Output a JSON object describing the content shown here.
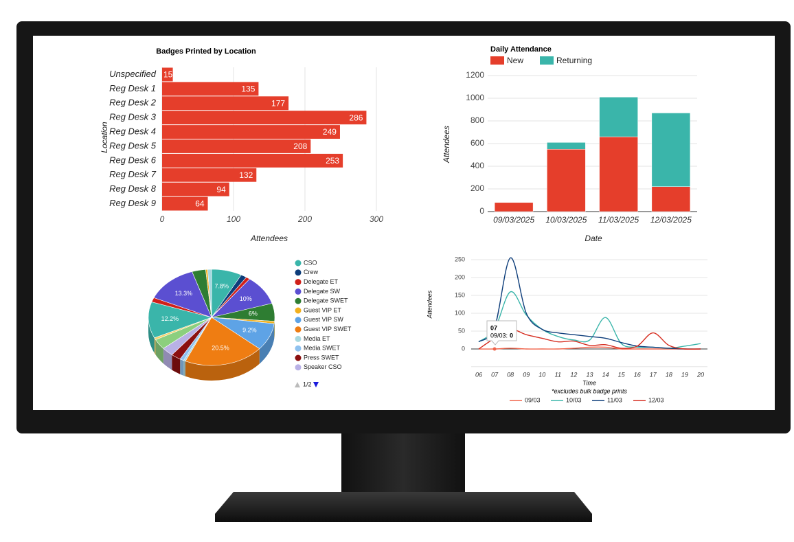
{
  "chart_data": [
    {
      "type": "hbar",
      "title": "Badges Printed by Location",
      "x_label": "Attendees",
      "y_label": "Location",
      "categories": [
        "Unspecified",
        "Reg Desk 1",
        "Reg Desk 2",
        "Reg Desk 3",
        "Reg Desk 4",
        "Reg Desk 5",
        "Reg Desk 6",
        "Reg Desk 7",
        "Reg Desk 8",
        "Reg Desk 9"
      ],
      "values": [
        15,
        135,
        177,
        286,
        249,
        208,
        253,
        132,
        94,
        64
      ],
      "color": "#e53e2b",
      "xlim": [
        0,
        300
      ],
      "xticks": [
        0,
        100,
        200,
        300
      ],
      "grid": true
    },
    {
      "type": "stacked-bar",
      "title": "Daily Attendance",
      "x_label": "Date",
      "y_label": "Attendees",
      "categories": [
        "09/03/2025",
        "10/03/2025",
        "11/03/2025",
        "12/03/2025"
      ],
      "series": [
        {
          "name": "New",
          "color": "#e53e2b",
          "values": [
            80,
            550,
            660,
            220
          ]
        },
        {
          "name": "Returning",
          "color": "#3ab5aa",
          "values": [
            0,
            60,
            350,
            650
          ]
        }
      ],
      "ylim": [
        0,
        1200
      ],
      "yticks": [
        0,
        200,
        400,
        600,
        800,
        1000,
        1200
      ],
      "grid": true,
      "legend": "top-left"
    },
    {
      "type": "pie3d",
      "categories": [
        "CSO",
        "Crew",
        "Delegate ET",
        "Delegate SW",
        "Delegate SWET",
        "Guest VIP ET",
        "Guest VIP SW",
        "Guest VIP SWET",
        "Media ET",
        "Media SWET",
        "Press SWET",
        "Speaker CSO",
        null,
        null,
        null,
        null,
        null,
        null,
        null,
        null
      ],
      "values": [
        7.8,
        1.5,
        1,
        10,
        6,
        0.8,
        9.2,
        20.5,
        0.5,
        1,
        2.5,
        3,
        3.5,
        0.7,
        12.2,
        1.5,
        13.3,
        3.5,
        0.5,
        1
      ],
      "value_labels": [
        "7.8%",
        null,
        null,
        "10%",
        "6%",
        null,
        "9.2%",
        "20.5%",
        null,
        null,
        null,
        null,
        null,
        null,
        "12.2%",
        null,
        "13.3%",
        null,
        null,
        null
      ],
      "colors": [
        "#3ab5aa",
        "#0d3d7a",
        "#d0201a",
        "#5b4fd1",
        "#2e7d32",
        "#f2b01e",
        "#5ea3e6",
        "#ef7d12",
        "#a8d8e0",
        "#8ec1ef",
        "#8b1010",
        "#b9b1e6",
        "#8ccf7e",
        "#f5d36b",
        "#3ab5aa",
        "#d0201a",
        "#5b4fd1",
        "#2e7d32",
        "#f2b01e",
        "#a8d8e0"
      ],
      "legend": "right",
      "legend_page": "1/2"
    },
    {
      "type": "line",
      "x_label": "Time",
      "y_label": "Attendees",
      "note": "*excludes bulk badge prints",
      "categories": [
        "06",
        "07",
        "08",
        "09",
        "10",
        "11",
        "12",
        "13",
        "14",
        "15",
        "16",
        "17",
        "18",
        "19",
        "20"
      ],
      "series": [
        {
          "name": "09/03",
          "color": "#f0634a",
          "values": [
            0,
            0,
            2,
            0,
            0,
            0,
            2,
            5,
            5,
            0,
            0,
            0,
            0,
            0,
            0
          ]
        },
        {
          "name": "10/03",
          "color": "#3ab5aa",
          "values": [
            20,
            55,
            160,
            95,
            55,
            35,
            25,
            25,
            88,
            15,
            5,
            5,
            2,
            8,
            15
          ]
        },
        {
          "name": "11/03",
          "color": "#0d3d7a",
          "values": [
            20,
            60,
            255,
            100,
            55,
            45,
            40,
            35,
            30,
            18,
            8,
            5,
            2,
            0,
            0
          ]
        },
        {
          "name": "12/03",
          "color": "#d62d20",
          "values": [
            0,
            30,
            55,
            40,
            30,
            20,
            22,
            10,
            12,
            2,
            8,
            45,
            10,
            0,
            0
          ]
        }
      ],
      "ylim": [
        -40,
        270
      ],
      "yticks": [
        0,
        50,
        100,
        150,
        200,
        250
      ],
      "grid": true,
      "legend": "bottom",
      "tooltip": {
        "x": "07",
        "label": "09/03:",
        "value": 0
      }
    }
  ]
}
